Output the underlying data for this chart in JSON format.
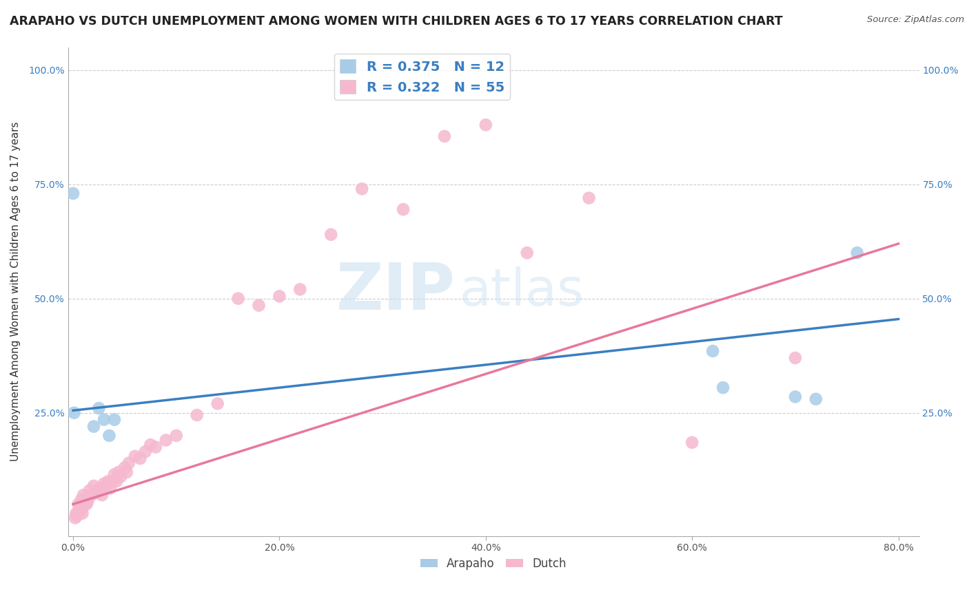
{
  "title": "ARAPAHO VS DUTCH UNEMPLOYMENT AMONG WOMEN WITH CHILDREN AGES 6 TO 17 YEARS CORRELATION CHART",
  "source": "Source: ZipAtlas.com",
  "ylabel": "Unemployment Among Women with Children Ages 6 to 17 years",
  "xlabel": "",
  "xlim": [
    -0.005,
    0.82
  ],
  "ylim": [
    -0.02,
    1.05
  ],
  "xticks": [
    0.0,
    0.2,
    0.4,
    0.6,
    0.8
  ],
  "xtick_labels": [
    "0.0%",
    "20.0%",
    "40.0%",
    "60.0%",
    "80.0%"
  ],
  "yticks": [
    0.0,
    0.25,
    0.5,
    0.75,
    1.0
  ],
  "ytick_labels": [
    "",
    "25.0%",
    "50.0%",
    "75.0%",
    "100.0%"
  ],
  "arapaho_color": "#A8CCE8",
  "dutch_color": "#F5B8CF",
  "arapaho_line_color": "#3A7FC1",
  "dutch_line_color": "#E8789A",
  "arapaho_R": 0.375,
  "arapaho_N": 12,
  "dutch_R": 0.322,
  "dutch_N": 55,
  "legend_label_color": "#3A7FC1",
  "background_color": "#FFFFFF",
  "grid_color": "#CCCCCC",
  "title_fontsize": 12.5,
  "axis_label_fontsize": 11,
  "tick_label_fontsize": 10,
  "legend_fontsize": 14,
  "arapaho_x": [
    0.001,
    0.02,
    0.025,
    0.03,
    0.035,
    0.04,
    0.62,
    0.63,
    0.7,
    0.72,
    0.76,
    0.0
  ],
  "arapaho_y": [
    0.25,
    0.22,
    0.26,
    0.235,
    0.2,
    0.235,
    0.385,
    0.305,
    0.285,
    0.28,
    0.6,
    0.73
  ],
  "dutch_x": [
    0.002,
    0.003,
    0.004,
    0.005,
    0.006,
    0.007,
    0.008,
    0.009,
    0.01,
    0.01,
    0.012,
    0.013,
    0.014,
    0.015,
    0.016,
    0.018,
    0.02,
    0.022,
    0.024,
    0.026,
    0.028,
    0.03,
    0.032,
    0.034,
    0.036,
    0.038,
    0.04,
    0.042,
    0.044,
    0.046,
    0.05,
    0.052,
    0.054,
    0.06,
    0.065,
    0.07,
    0.075,
    0.08,
    0.09,
    0.1,
    0.12,
    0.14,
    0.16,
    0.18,
    0.2,
    0.22,
    0.25,
    0.28,
    0.32,
    0.36,
    0.4,
    0.44,
    0.5,
    0.6,
    0.7
  ],
  "dutch_y": [
    0.02,
    0.03,
    0.025,
    0.05,
    0.04,
    0.035,
    0.06,
    0.03,
    0.045,
    0.07,
    0.06,
    0.05,
    0.055,
    0.065,
    0.08,
    0.07,
    0.09,
    0.075,
    0.08,
    0.085,
    0.07,
    0.095,
    0.09,
    0.1,
    0.085,
    0.1,
    0.115,
    0.1,
    0.12,
    0.11,
    0.13,
    0.12,
    0.14,
    0.155,
    0.15,
    0.165,
    0.18,
    0.175,
    0.19,
    0.2,
    0.245,
    0.27,
    0.5,
    0.485,
    0.505,
    0.52,
    0.64,
    0.74,
    0.695,
    0.855,
    0.88,
    0.6,
    0.72,
    0.185,
    0.37
  ]
}
